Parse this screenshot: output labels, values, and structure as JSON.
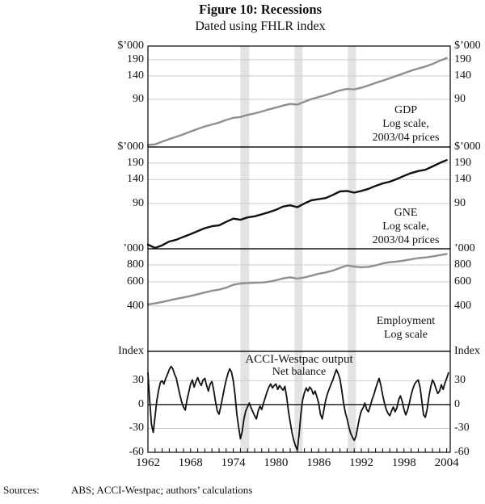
{
  "sources": {
    "label": "Sources:",
    "text": "ABS; ACCI-Westpac; authors’ calculations"
  },
  "chart_data": {
    "type": "line",
    "title": "Figure 10: Recessions",
    "subtitle": "Dated using FHLR index",
    "x_start_year": 1962,
    "xlim": [
      1962,
      2004.5
    ],
    "xtick_labels": [
      1962,
      1968,
      1974,
      1980,
      1986,
      1992,
      1998,
      2004
    ],
    "xtick_minor_interval": 1,
    "recession_bands": [
      [
        1975.0,
        1976.25
      ],
      [
        1982.6,
        1983.75
      ],
      [
        1990.1,
        1991.25
      ]
    ],
    "grid": "horizontal-only",
    "legend": "none",
    "colors": {
      "gray_line": "#8f8f8f",
      "black_line": "#111111",
      "gridline": "#cccccc",
      "band": "#e3e3e3",
      "border": "#000000"
    },
    "panels": [
      {
        "id": "gdp",
        "unit_left": "$’000",
        "unit_right": "$’000",
        "scale": "log",
        "ylim": [
          36.6,
          246
        ],
        "yticks": [
          190,
          140,
          90
        ],
        "annotation": [
          "GDP",
          "Log scale,",
          "2003/04 prices"
        ],
        "line_color_key": "gray_line",
        "series_interval": "annual",
        "values": [
          38,
          38.5,
          40.5,
          42.5,
          44.5,
          46.5,
          49,
          51.5,
          54,
          56,
          58,
          61,
          63.5,
          64.5,
          67,
          69,
          71.5,
          74.5,
          77,
          80,
          82.5,
          81.5,
          86,
          90.5,
          94,
          97.5,
          102,
          106.5,
          109.5,
          108.5,
          112,
          117,
          122.5,
          128,
          134,
          140.5,
          147.5,
          154.5,
          161,
          167,
          175,
          186,
          196
        ]
      },
      {
        "id": "gne",
        "unit_left": "$’000",
        "unit_right": "$’000",
        "scale": "log",
        "ylim": [
          38.9,
          256
        ],
        "yticks": [
          190,
          140,
          90
        ],
        "annotation": [
          "GNE",
          "Log scale,",
          "2003/04 prices"
        ],
        "line_color_key": "black_line",
        "series_interval": "annual",
        "values": [
          42,
          39.5,
          41.5,
          44.5,
          46,
          48.5,
          51,
          54,
          57,
          59,
          60,
          64,
          68,
          66.5,
          69.5,
          71,
          73.5,
          76.5,
          80,
          85,
          87,
          84,
          90,
          95.5,
          97.5,
          99.5,
          105.5,
          112.5,
          113.5,
          110,
          113.5,
          118,
          124.5,
          130.5,
          134.5,
          141.5,
          150,
          158,
          164,
          168,
          178.5,
          190,
          201
        ]
      },
      {
        "id": "employment",
        "unit_left": "’000",
        "unit_right": "’000",
        "scale": "log",
        "ylim": [
          185,
          1052
        ],
        "yticks": [
          800,
          600,
          400
        ],
        "annotation": [
          "Employment",
          "Log scale"
        ],
        "line_color_key": "gray_line",
        "series_interval": "annual",
        "values": [
          410,
          417,
          427,
          439,
          451,
          461,
          473,
          487,
          502,
          516,
          526,
          544,
          571,
          584,
          589,
          592,
          594,
          602,
          617,
          637,
          649,
          634,
          647,
          667,
          689,
          704,
          727,
          761,
          794,
          777,
          769,
          774,
          794,
          821,
          837,
          847,
          861,
          879,
          899,
          907,
          924,
          944,
          962
        ]
      },
      {
        "id": "survey",
        "unit_left": "Index",
        "unit_right": "Index",
        "scale": "linear",
        "ylim": [
          -60,
          67
        ],
        "yticks": [
          30,
          0,
          -30,
          -60
        ],
        "annotation": [
          "ACCI-Westpac output",
          "Net balance"
        ],
        "line_color_key": "black_line",
        "series_interval": "quarterly",
        "values": [
          40,
          5,
          -25,
          -35,
          -15,
          5,
          18,
          28,
          30,
          26,
          33,
          38,
          44,
          48,
          45,
          38,
          33,
          22,
          12,
          3,
          -3,
          -7,
          6,
          16,
          26,
          31,
          22,
          29,
          34,
          28,
          24,
          31,
          33,
          24,
          17,
          26,
          29,
          18,
          4,
          -8,
          -12,
          -2,
          9,
          21,
          31,
          39,
          45,
          41,
          30,
          12,
          -12,
          -28,
          -43,
          -34,
          -18,
          -8,
          -3,
          2,
          -4,
          -9,
          -14,
          -18,
          -8,
          -2,
          -6,
          2,
          9,
          16,
          22,
          26,
          21,
          24,
          26,
          19,
          24,
          21,
          18,
          23,
          10,
          -8,
          -22,
          -35,
          -45,
          -52,
          -57,
          -38,
          -12,
          6,
          15,
          21,
          17,
          22,
          19,
          13,
          17,
          10,
          2,
          -12,
          -18,
          -6,
          6,
          14,
          20,
          26,
          31,
          38,
          44,
          39,
          32,
          18,
          2,
          -10,
          -18,
          -28,
          -36,
          -41,
          -45,
          -40,
          -28,
          -16,
          -8,
          -4,
          2,
          -6,
          -9,
          -2,
          6,
          12,
          20,
          27,
          33,
          24,
          12,
          2,
          -6,
          -11,
          -14,
          -8,
          -3,
          -9,
          -4,
          6,
          11,
          4,
          -6,
          -13,
          -7,
          2,
          12,
          20,
          26,
          29,
          31,
          22,
          5,
          -13,
          -16,
          -6,
          10,
          22,
          31,
          27,
          20,
          14,
          17,
          25,
          19,
          27,
          33,
          40
        ]
      }
    ]
  }
}
